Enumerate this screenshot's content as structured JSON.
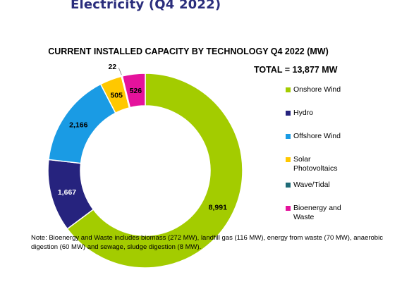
{
  "page": {
    "heading": "Electricity (Q4 2022)"
  },
  "chart_data": {
    "type": "pie",
    "variant": "donut",
    "title": "CURRENT INSTALLED CAPACITY BY TECHNOLOGY Q4 2022 (MW)",
    "total_label": "TOTAL = 13,877 MW",
    "unit": "MW",
    "legend_position": "right",
    "categories": [
      "Onshore Wind",
      "Hydro",
      "Offshore Wind",
      "Solar Photovoltaics",
      "Wave/Tidal",
      "Bioenergy and Waste"
    ],
    "values": [
      8991,
      1667,
      2166,
      505,
      22,
      526
    ],
    "data_labels": [
      "8,991",
      "1,667",
      "2,166",
      "505",
      "22",
      "526"
    ],
    "colors": [
      "#a3cc00",
      "#26237e",
      "#1a9be4",
      "#ffc800",
      "#1f6b77",
      "#e5129c"
    ]
  },
  "legend": {
    "items": [
      {
        "label": "Onshore Wind",
        "color": "#a3cc00"
      },
      {
        "label": "Hydro",
        "color": "#26237e"
      },
      {
        "label": "Offshore Wind",
        "color": "#1a9be4"
      },
      {
        "label": "Solar Photovoltaics",
        "color": "#ffc800"
      },
      {
        "label": "Wave/Tidal",
        "color": "#1f6b77"
      },
      {
        "label": "Bioenergy and Waste",
        "color": "#e5129c"
      }
    ]
  },
  "note": "Note: Bioenergy and Waste includes biomass (272 MW), landfill gas (116 MW), energy from waste (70 MW), anaerobic digestion (60 MW) and sewage, sludge digestion (8 MW)."
}
